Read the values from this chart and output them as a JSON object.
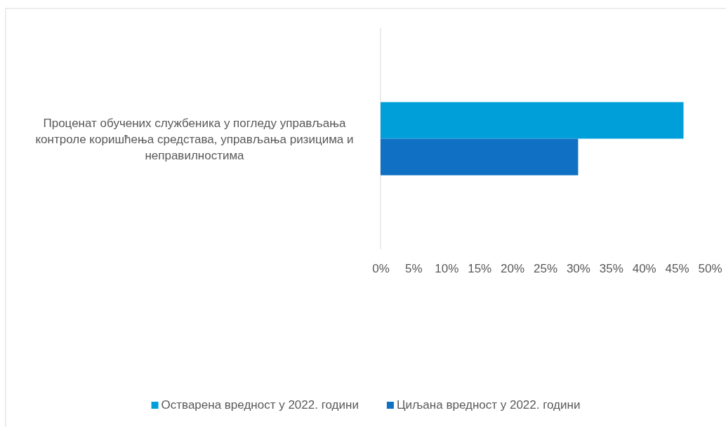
{
  "chart_data": {
    "type": "bar",
    "orientation": "horizontal",
    "categories": [
      "Проценат обучених службеника у погледу управљања контроле коришћења средстава, управљања ризицима и неправилностима"
    ],
    "series": [
      {
        "name": "Остварена вредност у 2022. години",
        "color": "#009fda",
        "values": [
          46
        ]
      },
      {
        "name": "Циљана вредност у 2022. години",
        "color": "#1070c4",
        "values": [
          30
        ]
      }
    ],
    "xlim": [
      0,
      50
    ],
    "xticks": [
      {
        "value": 0,
        "label": "0%"
      },
      {
        "value": 5,
        "label": "5%"
      },
      {
        "value": 10,
        "label": "10%"
      },
      {
        "value": 15,
        "label": "15%"
      },
      {
        "value": 20,
        "label": "20%"
      },
      {
        "value": 25,
        "label": "25%"
      },
      {
        "value": 30,
        "label": "30%"
      },
      {
        "value": 35,
        "label": "35%"
      },
      {
        "value": 40,
        "label": "40%"
      },
      {
        "value": 45,
        "label": "45%"
      },
      {
        "value": 50,
        "label": "50%"
      }
    ],
    "grid": false,
    "legend": "bottom"
  }
}
